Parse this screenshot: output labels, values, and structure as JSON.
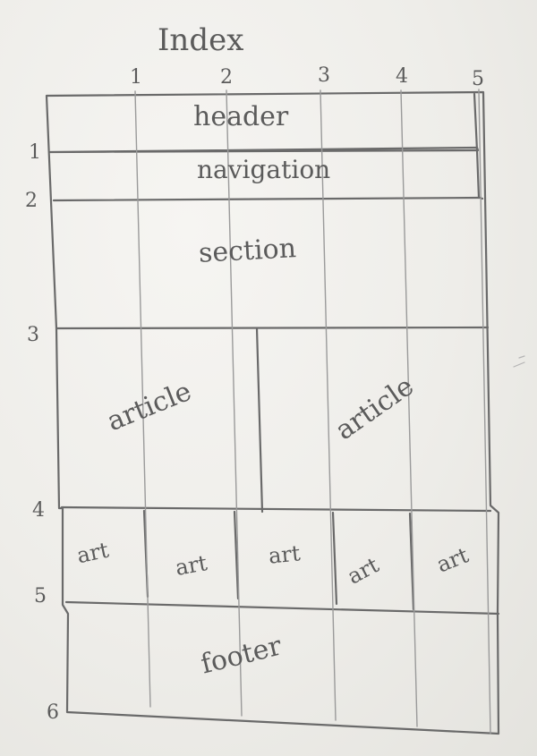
{
  "title": "Index",
  "column_numbers": [
    "1",
    "2",
    "3",
    "4",
    "5"
  ],
  "row_numbers": [
    "1",
    "2",
    "3",
    "4",
    "5",
    "6"
  ],
  "regions": {
    "header": "header",
    "navigation": "navigation",
    "section": "section",
    "article_left": "article",
    "article_right": "article",
    "footer": "footer"
  },
  "small_articles": [
    "art",
    "art",
    "art",
    "art",
    "art"
  ],
  "ink_color": "#5e5e5e",
  "paper_color": "#efeeea"
}
